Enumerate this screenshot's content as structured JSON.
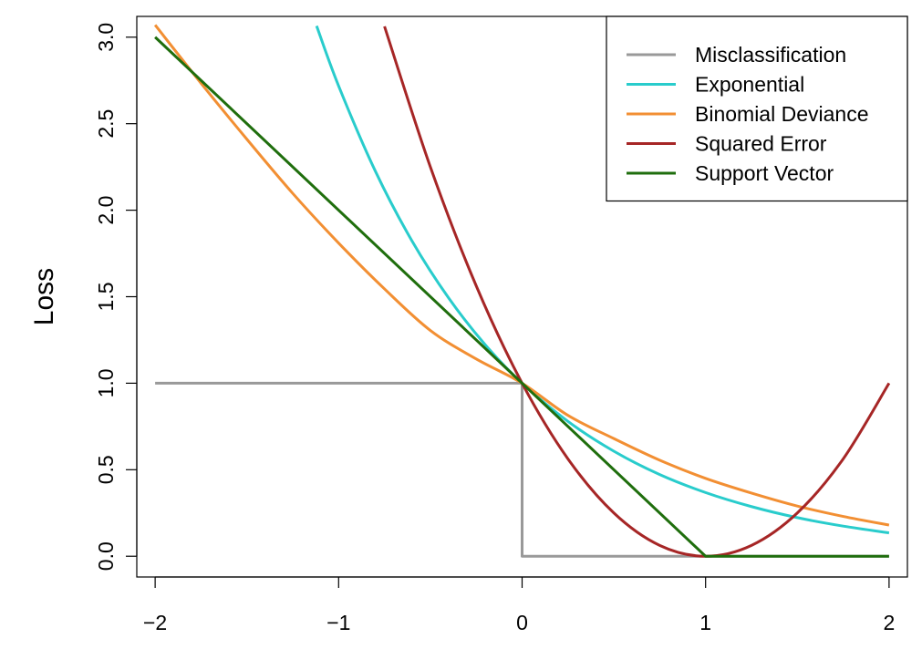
{
  "chart_data": {
    "type": "line",
    "title": "",
    "xlabel": "",
    "ylabel": "Loss",
    "xlim": [
      -2.1,
      2.1
    ],
    "ylim": [
      -0.12,
      3.12
    ],
    "x_ticks": [
      -2,
      -1,
      0,
      1,
      2
    ],
    "x_tick_labels": [
      "−2",
      "−1",
      "0",
      "1",
      "2"
    ],
    "y_ticks": [
      0,
      0.5,
      1,
      1.5,
      2,
      2.5,
      3
    ],
    "y_tick_labels": [
      "0.0",
      "0.5",
      "1.0",
      "1.5",
      "2.0",
      "2.5",
      "3.0"
    ],
    "grid": false,
    "legend_position": "top-right",
    "series": [
      {
        "name": "Misclassification",
        "color": "#999999",
        "x": [
          -2,
          0,
          0,
          2
        ],
        "y": [
          1,
          1,
          0,
          0
        ]
      },
      {
        "name": "Exponential",
        "color": "#29cccc",
        "x": [
          -1.12,
          -1.0,
          -0.8,
          -0.6,
          -0.4,
          -0.2,
          0,
          0.25,
          0.5,
          0.75,
          1.0,
          1.25,
          1.5,
          1.75,
          2.0
        ],
        "y": [
          3.065,
          2.718,
          2.226,
          1.822,
          1.492,
          1.221,
          1.0,
          0.779,
          0.607,
          0.472,
          0.368,
          0.287,
          0.223,
          0.174,
          0.135
        ]
      },
      {
        "name": "Binomial Deviance",
        "color": "#f28f33",
        "x": [
          -2.0,
          -1.75,
          -1.5,
          -1.25,
          -1.0,
          -0.75,
          -0.5,
          -0.25,
          0,
          0.25,
          0.5,
          0.75,
          1.0,
          1.25,
          1.5,
          1.75,
          2.0
        ],
        "y": [
          3.07,
          2.734,
          2.41,
          2.097,
          1.81,
          1.545,
          1.305,
          1.14,
          1.0,
          0.814,
          0.68,
          0.555,
          0.45,
          0.365,
          0.29,
          0.23,
          0.18
        ]
      },
      {
        "name": "Squared Error",
        "color": "#a62626",
        "x": [
          -0.75,
          -0.5,
          -0.25,
          0,
          0.25,
          0.5,
          0.75,
          1.0,
          1.25,
          1.5,
          1.75,
          2.0
        ],
        "y": [
          3.0625,
          2.25,
          1.5625,
          1.0,
          0.5625,
          0.25,
          0.0625,
          0.0,
          0.0625,
          0.25,
          0.5625,
          1.0
        ]
      },
      {
        "name": "Support Vector",
        "color": "#1f6e0d",
        "x": [
          -2,
          1,
          2
        ],
        "y": [
          3,
          0,
          0
        ]
      }
    ]
  }
}
